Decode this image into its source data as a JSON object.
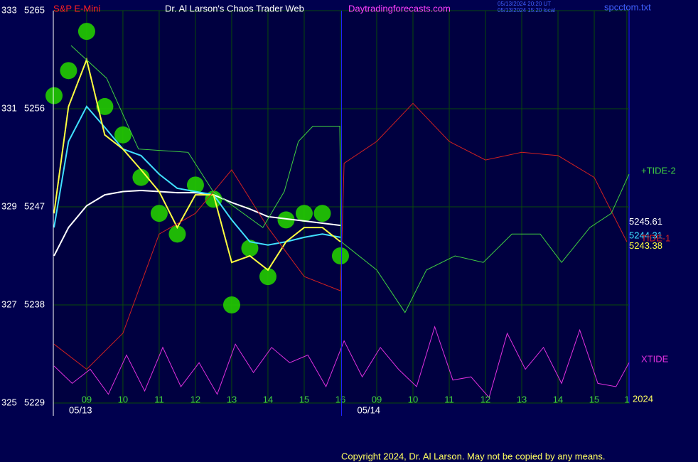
{
  "chart_data": {
    "type": "line",
    "title": "Dr. Al Larson's Chaos Trader Web",
    "symbol": "S&P E-Mini",
    "site": "Daytradingforecasts.com",
    "file": "spcctom.txt",
    "timestamps": [
      "05/13/2024 20:20 UT",
      "05/13/2024 15:20 local"
    ],
    "copyright": "Copyright 2024, Dr. Al Larson. May not be copied by any means.",
    "year": "2024",
    "xlim": [
      0.08,
      15.96
    ],
    "xticks": [
      {
        "value": 1,
        "label": "09"
      },
      {
        "value": 2,
        "label": "10"
      },
      {
        "value": 3,
        "label": "11"
      },
      {
        "value": 4,
        "label": "12"
      },
      {
        "value": 5,
        "label": "13"
      },
      {
        "value": 6,
        "label": "14"
      },
      {
        "value": 7,
        "label": "15"
      },
      {
        "value": 8,
        "label": "16"
      },
      {
        "value": 9,
        "label": "09"
      },
      {
        "value": 10,
        "label": "10"
      },
      {
        "value": 11,
        "label": "11"
      },
      {
        "value": 12,
        "label": "12"
      },
      {
        "value": 13,
        "label": "13"
      },
      {
        "value": 14,
        "label": "14"
      },
      {
        "value": 15,
        "label": "15"
      },
      {
        "value": 15.9,
        "label": "1"
      }
    ],
    "date_ticks": [
      {
        "value": 0.08,
        "label": "05/13"
      },
      {
        "value": 8.03,
        "label": "05/14"
      }
    ],
    "ylim": [
      5229,
      5265
    ],
    "yticks": [
      5229,
      5238,
      5247,
      5256,
      5265
    ],
    "y2lim": [
      325,
      333
    ],
    "y2ticks": [
      325,
      327,
      329,
      331,
      333
    ],
    "grid": true,
    "series": [
      {
        "style": "circles",
        "color": "#22cc00",
        "x": [
          0.1,
          0.5,
          1.0,
          1.5,
          2.0,
          2.5,
          3.0,
          3.5,
          4.0,
          4.5,
          5.0,
          5.5,
          6.0,
          6.5,
          7.0,
          7.5,
          8.0
        ],
        "values": [
          5257.2,
          5259.5,
          5263.1,
          5256.2,
          5253.6,
          5249.7,
          5246.4,
          5244.5,
          5249.0,
          5247.7,
          5238.0,
          5243.2,
          5240.6,
          5245.8,
          5246.4,
          5246.4,
          5242.5
        ]
      },
      {
        "color": "#ffffff",
        "x": [
          0.1,
          0.5,
          1.0,
          1.5,
          2.0,
          2.5,
          3.0,
          3.5,
          4.0,
          4.5,
          5.0,
          5.5,
          6.0,
          6.5,
          7.0,
          7.5,
          8.0
        ],
        "values": [
          5242.5,
          5245.1,
          5247.1,
          5248.1,
          5248.4,
          5248.5,
          5248.4,
          5248.3,
          5248.3,
          5248.1,
          5247.4,
          5246.8,
          5246.1,
          5245.9,
          5245.7,
          5245.5,
          5245.3
        ],
        "last": 5245.61
      },
      {
        "color": "#40e0ff",
        "x": [
          0.1,
          0.5,
          1.0,
          1.5,
          2.0,
          2.5,
          3.0,
          3.5,
          4.0,
          4.5,
          5.0,
          5.5,
          6.0,
          6.5,
          7.0,
          7.5,
          8.0
        ],
        "values": [
          5245.1,
          5253.0,
          5256.2,
          5254.3,
          5252.3,
          5251.7,
          5250.0,
          5248.7,
          5248.4,
          5248.1,
          5245.8,
          5243.8,
          5243.5,
          5243.8,
          5244.2,
          5244.5,
          5244.2
        ],
        "last": 5244.31
      },
      {
        "color": "#ffff40",
        "x": [
          0.1,
          0.5,
          1.0,
          1.5,
          2.0,
          2.5,
          3.0,
          3.5,
          4.0,
          4.5,
          5.0,
          5.5,
          6.0,
          6.5,
          7.0,
          7.5,
          8.0
        ],
        "values": [
          5246.4,
          5256.2,
          5260.5,
          5253.6,
          5252.3,
          5250.4,
          5248.4,
          5245.1,
          5248.1,
          5248.1,
          5241.9,
          5242.5,
          5241.2,
          5243.8,
          5245.1,
          5245.1,
          5243.8
        ],
        "last": 5243.38
      },
      {
        "name": "TIDE-1",
        "color": "#d02020",
        "x": [
          0.1,
          1,
          2,
          3,
          4,
          5,
          6,
          7,
          8,
          8.1,
          9,
          10,
          11,
          12,
          13,
          14,
          15,
          15.9
        ],
        "values": [
          5234.4,
          5232.1,
          5235.4,
          5244.5,
          5246.4,
          5250.4,
          5245.1,
          5240.6,
          5239.3,
          5251.0,
          5253.0,
          5256.5,
          5253.0,
          5251.3,
          5252.0,
          5251.7,
          5249.7,
          5243.8
        ]
      },
      {
        "name": "+TIDE-2",
        "color": "#40d040",
        "x": [
          0.57,
          1.55,
          2.43,
          3.8,
          4.49,
          5.86,
          6.45,
          6.84,
          7.24,
          7.98,
          8.02,
          9.0,
          9.78,
          10.37,
          11.16,
          11.94,
          12.73,
          13.51,
          14.1,
          14.88,
          15.47,
          15.96
        ],
        "values": [
          5261.8,
          5258.8,
          5252.3,
          5252.0,
          5248.4,
          5245.1,
          5248.4,
          5253.0,
          5254.4,
          5254.4,
          5243.8,
          5241.2,
          5237.3,
          5241.2,
          5242.5,
          5241.9,
          5244.5,
          5244.5,
          5241.9,
          5245.1,
          5246.4,
          5250.0
        ]
      },
      {
        "name": "XTIDE",
        "color": "#e030e0",
        "x": [
          0.1,
          0.6,
          1.1,
          1.6,
          2.1,
          2.6,
          3.1,
          3.6,
          4.1,
          4.6,
          5.1,
          5.6,
          6.1,
          6.6,
          7.1,
          7.6,
          8.1,
          8.6,
          9.1,
          9.6,
          10.1,
          10.6,
          11.1,
          11.6,
          12.1,
          12.6,
          13.1,
          13.6,
          14.1,
          14.6,
          15.1,
          15.6,
          15.96
        ],
        "values": [
          5232.4,
          5230.8,
          5232.1,
          5229.8,
          5233.4,
          5230.1,
          5234.1,
          5230.5,
          5232.7,
          5229.8,
          5234.4,
          5231.8,
          5234.1,
          5232.7,
          5233.4,
          5230.5,
          5234.7,
          5231.4,
          5234.1,
          5232.1,
          5230.5,
          5236.0,
          5231.1,
          5231.4,
          5229.5,
          5235.4,
          5232.1,
          5234.1,
          5230.8,
          5235.7,
          5230.8,
          5230.5,
          5232.7
        ]
      }
    ]
  }
}
